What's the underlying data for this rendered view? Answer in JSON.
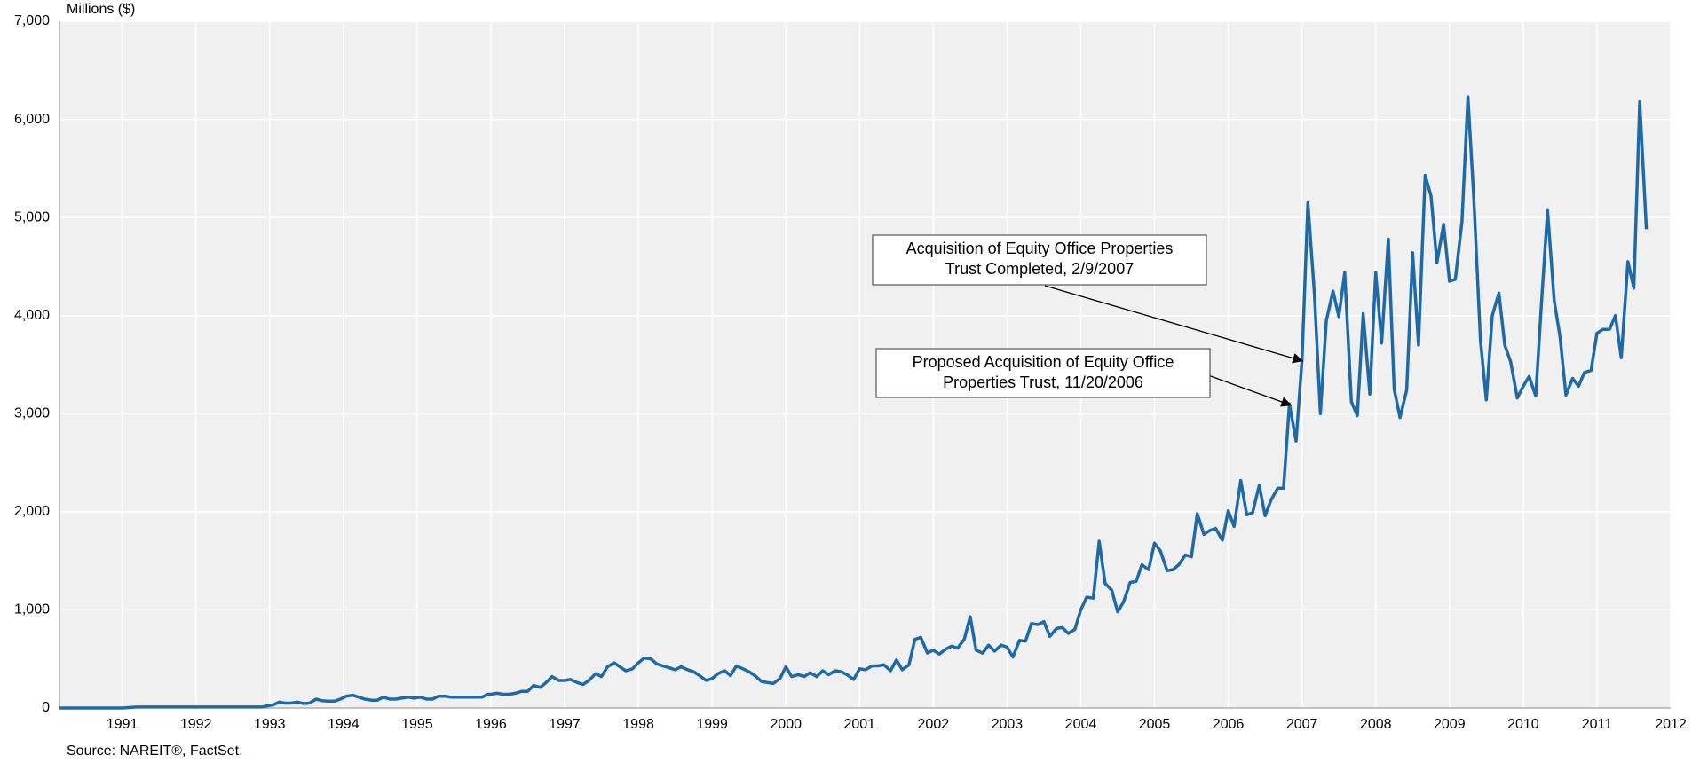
{
  "chart_data": {
    "type": "line",
    "y_axis_label": "Millions ($)",
    "source": "Source: NAREIT®, FactSet.",
    "xlim": [
      1990.15,
      2012
    ],
    "xticks": [
      1991,
      1992,
      1993,
      1994,
      1995,
      1996,
      1997,
      1998,
      1999,
      2000,
      2001,
      2002,
      2003,
      2004,
      2005,
      2006,
      2007,
      2008,
      2009,
      2010,
      2011,
      2012
    ],
    "ylim": [
      0,
      7000
    ],
    "yticks": [
      0,
      {
        "value": 1000,
        "label": "1,000"
      },
      {
        "value": 2000,
        "label": "2,000"
      },
      {
        "value": 3000,
        "label": "3,000"
      },
      {
        "value": 4000,
        "label": "4,000"
      },
      {
        "value": 5000,
        "label": "5,000"
      },
      {
        "value": 6000,
        "label": "6,000"
      },
      {
        "value": 7000,
        "label": "7,000"
      }
    ],
    "grid": true,
    "annotations": [
      {
        "lines": [
          "Acquisition of Equity Office Properties",
          "Trust Completed, 2/9/2007"
        ]
      },
      {
        "lines": [
          "Proposed Acquisition of Equity Office",
          "Properties Trust, 11/20/2006"
        ]
      }
    ],
    "series": [
      {
        "color": "#1f6aa5",
        "x": [
          1990.15,
          1990.5,
          1991.0,
          1991.2,
          1991.5,
          1992.0,
          1992.5,
          1992.9,
          1992.95,
          1993.04,
          1993.13,
          1993.21,
          1993.29,
          1993.38,
          1993.46,
          1993.54,
          1993.63,
          1993.71,
          1993.79,
          1993.88,
          1993.96,
          1994.04,
          1994.13,
          1994.21,
          1994.29,
          1994.38,
          1994.46,
          1994.54,
          1994.63,
          1994.71,
          1994.79,
          1994.88,
          1994.96,
          1995.04,
          1995.13,
          1995.21,
          1995.29,
          1995.38,
          1995.46,
          1995.54,
          1995.63,
          1995.71,
          1995.79,
          1995.88,
          1995.96,
          1996.0,
          1996.08,
          1996.17,
          1996.25,
          1996.33,
          1996.42,
          1996.5,
          1996.58,
          1996.67,
          1996.75,
          1996.83,
          1996.92,
          1997.0,
          1997.08,
          1997.17,
          1997.25,
          1997.33,
          1997.42,
          1997.5,
          1997.58,
          1997.67,
          1997.75,
          1997.83,
          1997.92,
          1998.0,
          1998.08,
          1998.17,
          1998.25,
          1998.33,
          1998.42,
          1998.5,
          1998.58,
          1998.67,
          1998.75,
          1998.83,
          1998.92,
          1999.0,
          1999.08,
          1999.17,
          1999.25,
          1999.33,
          1999.42,
          1999.5,
          1999.58,
          1999.67,
          1999.75,
          1999.83,
          1999.92,
          2000.0,
          2000.08,
          2000.17,
          2000.25,
          2000.33,
          2000.42,
          2000.5,
          2000.58,
          2000.67,
          2000.75,
          2000.83,
          2000.92,
          2001.0,
          2001.08,
          2001.17,
          2001.25,
          2001.33,
          2001.42,
          2001.5,
          2001.58,
          2001.67,
          2001.75,
          2001.83,
          2001.92,
          2002.0,
          2002.08,
          2002.17,
          2002.25,
          2002.33,
          2002.42,
          2002.5,
          2002.58,
          2002.67,
          2002.75,
          2002.83,
          2002.92,
          2003.0,
          2003.08,
          2003.17,
          2003.25,
          2003.33,
          2003.42,
          2003.5,
          2003.58,
          2003.67,
          2003.75,
          2003.83,
          2003.92,
          2004.0,
          2004.08,
          2004.17,
          2004.25,
          2004.33,
          2004.42,
          2004.5,
          2004.58,
          2004.67,
          2004.75,
          2004.83,
          2004.92,
          2005.0,
          2005.08,
          2005.17,
          2005.25,
          2005.33,
          2005.42,
          2005.5,
          2005.58,
          2005.67,
          2005.75,
          2005.83,
          2005.92,
          2006.0,
          2006.08,
          2006.17,
          2006.25,
          2006.33,
          2006.42,
          2006.5,
          2006.58,
          2006.67,
          2006.75,
          2006.83,
          2006.92,
          2007.0,
          2007.08,
          2007.17,
          2007.25,
          2007.33,
          2007.42,
          2007.5,
          2007.58,
          2007.67,
          2007.75,
          2007.83,
          2007.92,
          2008.0,
          2008.08,
          2008.17,
          2008.25,
          2008.33,
          2008.42,
          2008.5,
          2008.58,
          2008.67,
          2008.75,
          2008.83,
          2008.92,
          2009.0,
          2009.08,
          2009.17,
          2009.25,
          2009.33,
          2009.42,
          2009.5,
          2009.58,
          2009.67,
          2009.75,
          2009.83,
          2009.92,
          2010.0,
          2010.08,
          2010.17,
          2010.25,
          2010.33,
          2010.42,
          2010.5,
          2010.58,
          2010.67,
          2010.75,
          2010.83,
          2010.92,
          2011.0,
          2011.08,
          2011.17,
          2011.25,
          2011.33,
          2011.42,
          2011.5,
          2011.58,
          2011.67
        ],
        "values": [
          0,
          0,
          0,
          10,
          10,
          10,
          10,
          10,
          20,
          30,
          60,
          50,
          50,
          60,
          45,
          50,
          90,
          75,
          70,
          70,
          90,
          120,
          130,
          110,
          90,
          80,
          80,
          110,
          90,
          90,
          100,
          110,
          100,
          110,
          90,
          90,
          120,
          120,
          110,
          110,
          110,
          110,
          110,
          110,
          140,
          140,
          150,
          140,
          140,
          150,
          170,
          170,
          230,
          210,
          260,
          320,
          280,
          280,
          290,
          260,
          240,
          280,
          350,
          320,
          420,
          460,
          420,
          380,
          400,
          460,
          510,
          500,
          450,
          430,
          410,
          390,
          420,
          390,
          370,
          330,
          280,
          300,
          350,
          380,
          330,
          430,
          400,
          370,
          330,
          270,
          260,
          250,
          300,
          420,
          320,
          340,
          320,
          360,
          320,
          380,
          340,
          380,
          370,
          340,
          290,
          400,
          390,
          430,
          430,
          440,
          380,
          490,
          390,
          440,
          700,
          720,
          560,
          590,
          550,
          600,
          630,
          610,
          700,
          930,
          590,
          560,
          640,
          580,
          640,
          620,
          520,
          690,
          680,
          860,
          850,
          880,
          730,
          810,
          820,
          760,
          800,
          1000,
          1130,
          1120,
          1700,
          1270,
          1200,
          980,
          1080,
          1280,
          1290,
          1460,
          1410,
          1680,
          1600,
          1400,
          1410,
          1460,
          1560,
          1540,
          1980,
          1770,
          1810,
          1830,
          1710,
          2010,
          1850,
          2320,
          1970,
          1990,
          2270,
          1960,
          2120,
          2240,
          2240,
          3100,
          2720,
          3550,
          5150,
          4200,
          3000,
          3950,
          4250,
          3990,
          4440,
          3120,
          2980,
          4020,
          3200,
          4440,
          3720,
          4780,
          3250,
          2960,
          3240,
          4640,
          3700,
          5430,
          5220,
          4540,
          4930,
          4350,
          4370,
          4960,
          6230,
          5200,
          3750,
          3140,
          4000,
          4230,
          3700,
          3530,
          3160,
          3280,
          3380,
          3180,
          4150,
          5070,
          4150,
          3780,
          3190,
          3360,
          3280,
          3420,
          3440,
          3820,
          3860,
          3860,
          4000,
          3570,
          4550,
          4280,
          6180,
          4880
        ]
      }
    ]
  }
}
